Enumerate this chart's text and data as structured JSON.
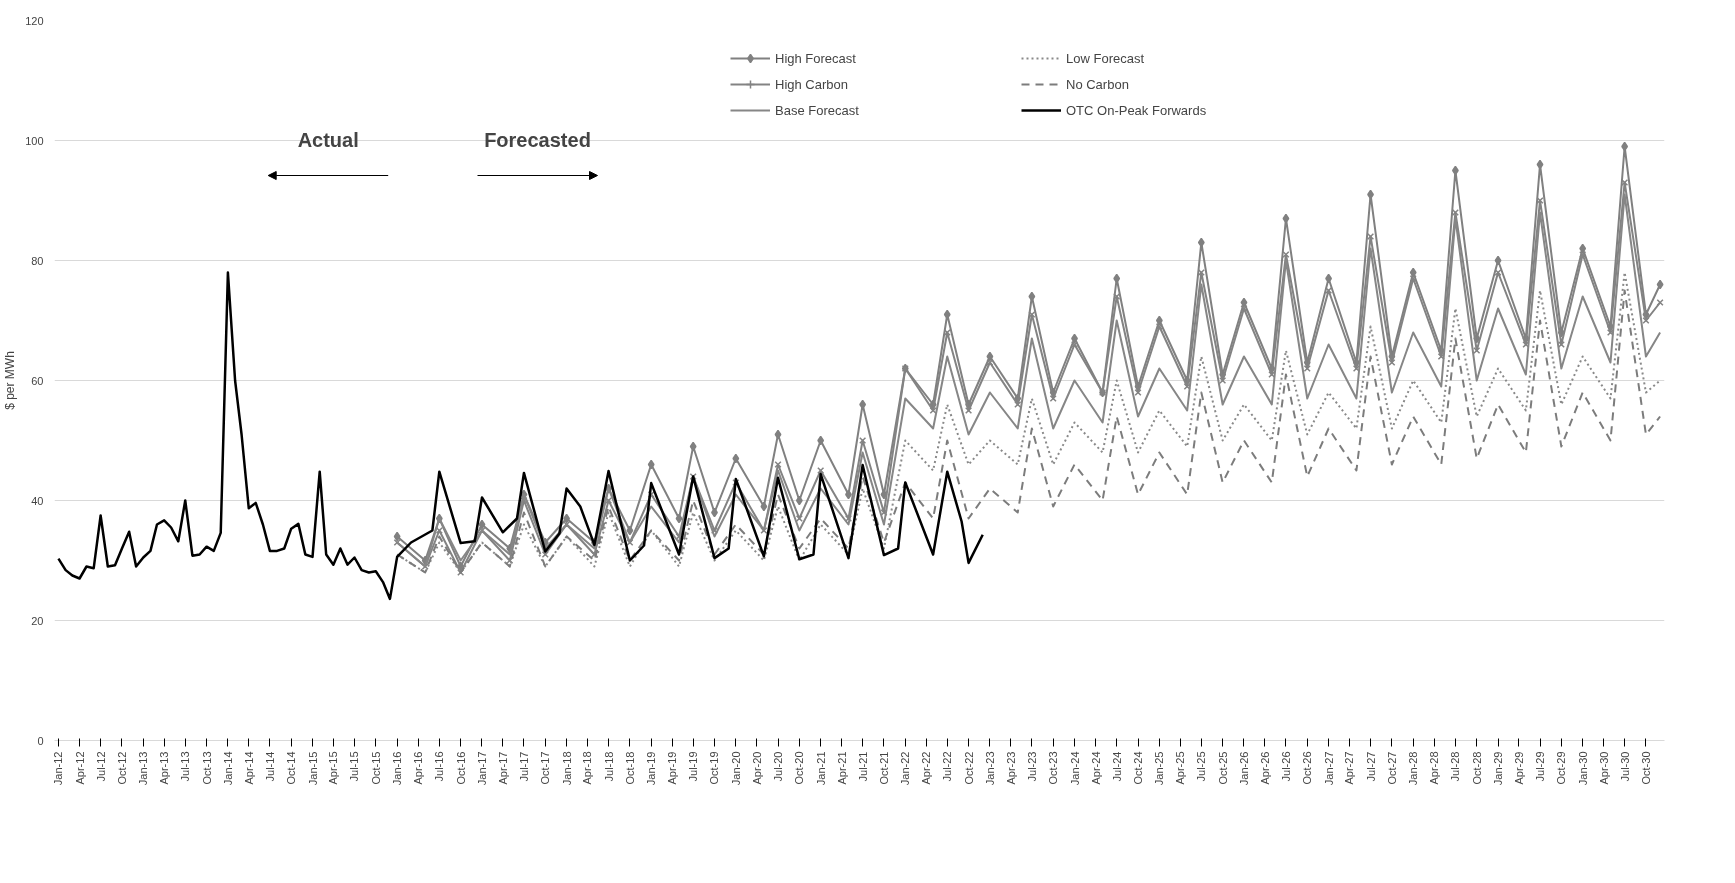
{
  "chart_data": {
    "type": "line",
    "ylabel": "$ per MWh",
    "annotations": [
      "Actual",
      "Forecasted"
    ],
    "xlim": [
      "2011-12-15",
      "2030-12-20"
    ],
    "ylim": [
      0,
      120
    ],
    "yticks": [
      0,
      20,
      40,
      60,
      80,
      100,
      120
    ],
    "grid": "y",
    "legend": "top right",
    "xticks": [
      {
        "value": "2012-01",
        "label": "Jan-12"
      },
      {
        "value": "2012-04",
        "label": "Apr-12"
      },
      {
        "value": "2012-07",
        "label": "Jul-12"
      },
      {
        "value": "2012-10",
        "label": "Oct-12"
      },
      {
        "value": "2013-01",
        "label": "Jan-13"
      },
      {
        "value": "2013-04",
        "label": "Apr-13"
      },
      {
        "value": "2013-07",
        "label": "Jul-13"
      },
      {
        "value": "2013-10",
        "label": "Oct-13"
      },
      {
        "value": "2014-01",
        "label": "Jan-14"
      },
      {
        "value": "2014-04",
        "label": "Apr-14"
      },
      {
        "value": "2014-07",
        "label": "Jul-14"
      },
      {
        "value": "2014-10",
        "label": "Oct-14"
      },
      {
        "value": "2015-01",
        "label": "Jan-15"
      },
      {
        "value": "2015-04",
        "label": "Apr-15"
      },
      {
        "value": "2015-07",
        "label": "Jul-15"
      },
      {
        "value": "2015-10",
        "label": "Oct-15"
      },
      {
        "value": "2016-01",
        "label": "Jan-16"
      },
      {
        "value": "2016-04",
        "label": "Apr-16"
      },
      {
        "value": "2016-07",
        "label": "Jul-16"
      },
      {
        "value": "2016-10",
        "label": "Oct-16"
      },
      {
        "value": "2017-01",
        "label": "Jan-17"
      },
      {
        "value": "2017-04",
        "label": "Apr-17"
      },
      {
        "value": "2017-07",
        "label": "Jul-17"
      },
      {
        "value": "2017-10",
        "label": "Oct-17"
      },
      {
        "value": "2018-01",
        "label": "Jan-18"
      },
      {
        "value": "2018-04",
        "label": "Apr-18"
      },
      {
        "value": "2018-07",
        "label": "Jul-18"
      },
      {
        "value": "2018-10",
        "label": "Oct-18"
      },
      {
        "value": "2019-01",
        "label": "Jan-19"
      },
      {
        "value": "2019-04",
        "label": "Apr-19"
      },
      {
        "value": "2019-07",
        "label": "Jul-19"
      },
      {
        "value": "2019-10",
        "label": "Oct-19"
      },
      {
        "value": "2020-01",
        "label": "Jan-20"
      },
      {
        "value": "2020-04",
        "label": "Apr-20"
      },
      {
        "value": "2020-07",
        "label": "Jul-20"
      },
      {
        "value": "2020-10",
        "label": "Oct-20"
      },
      {
        "value": "2021-01",
        "label": "Jan-21"
      },
      {
        "value": "2021-04",
        "label": "Apr-21"
      },
      {
        "value": "2021-07",
        "label": "Jul-21"
      },
      {
        "value": "2021-10",
        "label": "Oct-21"
      },
      {
        "value": "2022-01",
        "label": "Jan-22"
      },
      {
        "value": "2022-04",
        "label": "Apr-22"
      },
      {
        "value": "2022-07",
        "label": "Jul-22"
      },
      {
        "value": "2022-10",
        "label": "Oct-22"
      },
      {
        "value": "2023-01",
        "label": "Jan-23"
      },
      {
        "value": "2023-04",
        "label": "Apr-23"
      },
      {
        "value": "2023-07",
        "label": "Jul-23"
      },
      {
        "value": "2023-10",
        "label": "Oct-23"
      },
      {
        "value": "2024-01",
        "label": "Jan-24"
      },
      {
        "value": "2024-04",
        "label": "Apr-24"
      },
      {
        "value": "2024-07",
        "label": "Jul-24"
      },
      {
        "value": "2024-10",
        "label": "Oct-24"
      },
      {
        "value": "2025-01",
        "label": "Jan-25"
      },
      {
        "value": "2025-04",
        "label": "Apr-25"
      },
      {
        "value": "2025-07",
        "label": "Jul-25"
      },
      {
        "value": "2025-10",
        "label": "Oct-25"
      },
      {
        "value": "2026-01",
        "label": "Jan-26"
      },
      {
        "value": "2026-04",
        "label": "Apr-26"
      },
      {
        "value": "2026-07",
        "label": "Jul-26"
      },
      {
        "value": "2026-10",
        "label": "Oct-26"
      },
      {
        "value": "2027-01",
        "label": "Jan-27"
      },
      {
        "value": "2027-04",
        "label": "Apr-27"
      },
      {
        "value": "2027-07",
        "label": "Jul-27"
      },
      {
        "value": "2027-10",
        "label": "Oct-27"
      },
      {
        "value": "2028-01",
        "label": "Jan-28"
      },
      {
        "value": "2028-04",
        "label": "Apr-28"
      },
      {
        "value": "2028-07",
        "label": "Jul-28"
      },
      {
        "value": "2028-10",
        "label": "Oct-28"
      },
      {
        "value": "2029-01",
        "label": "Jan-29"
      },
      {
        "value": "2029-04",
        "label": "Apr-29"
      },
      {
        "value": "2029-07",
        "label": "Jul-29"
      },
      {
        "value": "2029-10",
        "label": "Oct-29"
      },
      {
        "value": "2030-01",
        "label": "Jan-30"
      },
      {
        "value": "2030-04",
        "label": "Apr-30"
      },
      {
        "value": "2030-07",
        "label": "Jul-30"
      },
      {
        "value": "2030-10",
        "label": "Oct-30"
      }
    ],
    "series": [
      {
        "name": "High Forecast",
        "color": "#808080",
        "line_style": "solid",
        "marker": "diamond",
        "x": [
          "2016-01",
          "2016-05",
          "2016-07",
          "2016-10",
          "2017-01",
          "2017-05",
          "2017-07",
          "2017-10",
          "2018-01",
          "2018-05",
          "2018-07",
          "2018-10",
          "2019-01",
          "2019-05",
          "2019-07",
          "2019-10",
          "2020-01",
          "2020-05",
          "2020-07",
          "2020-10",
          "2021-01",
          "2021-05",
          "2021-07",
          "2021-10",
          "2022-01",
          "2022-05",
          "2022-07",
          "2022-10",
          "2023-01",
          "2023-05",
          "2023-07",
          "2023-10",
          "2024-01",
          "2024-05",
          "2024-07",
          "2024-10",
          "2025-01",
          "2025-05",
          "2025-07",
          "2025-10",
          "2026-01",
          "2026-05",
          "2026-07",
          "2026-10",
          "2027-01",
          "2027-05",
          "2027-07",
          "2027-10",
          "2028-01",
          "2028-05",
          "2028-07",
          "2028-10",
          "2029-01",
          "2029-05",
          "2029-07",
          "2029-10",
          "2030-01",
          "2030-05",
          "2030-07",
          "2030-10",
          "2030-12"
        ],
        "values": [
          34,
          30,
          37,
          29,
          36,
          32,
          41,
          33,
          37,
          33,
          42,
          35,
          46,
          37,
          49,
          38,
          47,
          39,
          51,
          40,
          50,
          41,
          56,
          41,
          62,
          56,
          71,
          56,
          64,
          57,
          74,
          58,
          67,
          58,
          77,
          59,
          70,
          60,
          83,
          61,
          73,
          62,
          87,
          63,
          77,
          63,
          91,
          64,
          78,
          65,
          95,
          67,
          80,
          67,
          96,
          68,
          82,
          69,
          99,
          71,
          76
        ]
      },
      {
        "name": "High Carbon",
        "color": "#838383",
        "line_style": "solid",
        "marker": "cross",
        "x": [
          "2016-01",
          "2016-05",
          "2016-07",
          "2016-10",
          "2017-01",
          "2017-05",
          "2017-07",
          "2017-10",
          "2018-01",
          "2018-05",
          "2018-07",
          "2018-10",
          "2019-01",
          "2019-05",
          "2019-07",
          "2019-10",
          "2020-01",
          "2020-05",
          "2020-07",
          "2020-10",
          "2021-01",
          "2021-05",
          "2021-07",
          "2021-10",
          "2022-01",
          "2022-05",
          "2022-07",
          "2022-10",
          "2023-01",
          "2023-05",
          "2023-07",
          "2023-10",
          "2024-01",
          "2024-05",
          "2024-07",
          "2024-10",
          "2025-01",
          "2025-05",
          "2025-07",
          "2025-10",
          "2026-01",
          "2026-05",
          "2026-07",
          "2026-10",
          "2027-01",
          "2027-05",
          "2027-07",
          "2027-10",
          "2028-01",
          "2028-05",
          "2028-07",
          "2028-10",
          "2029-01",
          "2029-05",
          "2029-07",
          "2029-10",
          "2030-01",
          "2030-05",
          "2030-07",
          "2030-10",
          "2030-12"
        ],
        "values": [
          33,
          29,
          35,
          28,
          35,
          30,
          40,
          31,
          36,
          31,
          40,
          33,
          41,
          34,
          44,
          35,
          43,
          35,
          46,
          37,
          45,
          37,
          50,
          38,
          62,
          55,
          68,
          55,
          63,
          56,
          71,
          57,
          66,
          58,
          74,
          58,
          69,
          59,
          78,
          60,
          72,
          61,
          81,
          62,
          75,
          62,
          84,
          63,
          77,
          64,
          88,
          65,
          78,
          66,
          90,
          66,
          81,
          68,
          93,
          70,
          73
        ]
      },
      {
        "name": "Base Forecast",
        "color": "#868686",
        "line_style": "solid",
        "x": [
          "2016-01",
          "2016-05",
          "2016-07",
          "2016-10",
          "2017-01",
          "2017-05",
          "2017-07",
          "2017-10",
          "2018-01",
          "2018-05",
          "2018-07",
          "2018-10",
          "2019-01",
          "2019-05",
          "2019-07",
          "2019-10",
          "2020-01",
          "2020-05",
          "2020-07",
          "2020-10",
          "2021-01",
          "2021-05",
          "2021-07",
          "2021-10",
          "2022-01",
          "2022-05",
          "2022-07",
          "2022-10",
          "2023-01",
          "2023-05",
          "2023-07",
          "2023-10",
          "2024-01",
          "2024-05",
          "2024-07",
          "2024-10",
          "2025-01",
          "2025-05",
          "2025-07",
          "2025-10",
          "2026-01",
          "2026-05",
          "2026-07",
          "2026-10",
          "2027-01",
          "2027-05",
          "2027-07",
          "2027-10",
          "2028-01",
          "2028-05",
          "2028-07",
          "2028-10",
          "2029-01",
          "2029-05",
          "2029-07",
          "2029-10",
          "2030-01",
          "2030-05",
          "2030-07",
          "2030-10",
          "2030-12"
        ],
        "values": [
          33,
          29,
          37,
          30,
          35,
          31,
          41,
          32,
          36,
          32,
          42,
          33,
          39,
          33,
          44,
          34,
          41,
          35,
          45,
          35,
          42,
          36,
          48,
          36,
          57,
          52,
          64,
          51,
          58,
          52,
          67,
          52,
          60,
          53,
          70,
          54,
          62,
          55,
          76,
          56,
          64,
          56,
          80,
          57,
          66,
          57,
          82,
          58,
          68,
          59,
          87,
          60,
          72,
          61,
          88,
          62,
          74,
          63,
          91,
          64,
          68
        ]
      },
      {
        "name": "Low Forecast",
        "color": "#898989",
        "line_style": "dotted",
        "x": [
          "2016-01",
          "2016-05",
          "2016-07",
          "2016-10",
          "2017-01",
          "2017-05",
          "2017-07",
          "2017-10",
          "2018-01",
          "2018-05",
          "2018-07",
          "2018-10",
          "2019-01",
          "2019-05",
          "2019-07",
          "2019-10",
          "2020-01",
          "2020-05",
          "2020-07",
          "2020-10",
          "2021-01",
          "2021-05",
          "2021-07",
          "2021-10",
          "2022-01",
          "2022-05",
          "2022-07",
          "2022-10",
          "2023-01",
          "2023-05",
          "2023-07",
          "2023-10",
          "2024-01",
          "2024-05",
          "2024-07",
          "2024-10",
          "2025-01",
          "2025-05",
          "2025-07",
          "2025-10",
          "2026-01",
          "2026-05",
          "2026-07",
          "2026-10",
          "2027-01",
          "2027-05",
          "2027-07",
          "2027-10",
          "2028-01",
          "2028-05",
          "2028-07",
          "2028-10",
          "2029-01",
          "2029-05",
          "2029-07",
          "2029-10",
          "2030-01",
          "2030-05",
          "2030-07",
          "2030-10",
          "2030-12"
        ],
        "values": [
          31,
          28,
          33,
          28,
          33,
          29,
          36,
          29,
          34,
          29,
          38,
          29,
          35,
          29,
          38,
          30,
          35,
          30,
          39,
          30,
          36,
          31,
          42,
          32,
          50,
          45,
          56,
          46,
          50,
          46,
          57,
          46,
          53,
          48,
          60,
          48,
          55,
          49,
          64,
          50,
          56,
          50,
          65,
          51,
          58,
          52,
          69,
          52,
          60,
          53,
          72,
          54,
          62,
          55,
          75,
          56,
          64,
          57,
          78,
          58,
          60
        ]
      },
      {
        "name": "No Carbon",
        "color": "#7c7c7c",
        "line_style": "dashed",
        "x": [
          "2016-01",
          "2016-05",
          "2016-07",
          "2016-10",
          "2017-01",
          "2017-05",
          "2017-07",
          "2017-10",
          "2018-01",
          "2018-05",
          "2018-07",
          "2018-10",
          "2019-01",
          "2019-05",
          "2019-07",
          "2019-10",
          "2020-01",
          "2020-05",
          "2020-07",
          "2020-10",
          "2021-01",
          "2021-05",
          "2021-07",
          "2021-10",
          "2022-01",
          "2022-05",
          "2022-07",
          "2022-10",
          "2023-01",
          "2023-05",
          "2023-07",
          "2023-10",
          "2024-01",
          "2024-05",
          "2024-07",
          "2024-10",
          "2025-01",
          "2025-05",
          "2025-07",
          "2025-10",
          "2026-01",
          "2026-05",
          "2026-07",
          "2026-10",
          "2027-01",
          "2027-05",
          "2027-07",
          "2027-10",
          "2028-01",
          "2028-05",
          "2028-07",
          "2028-10",
          "2029-01",
          "2029-05",
          "2029-07",
          "2029-10",
          "2030-01",
          "2030-05",
          "2030-07",
          "2030-10",
          "2030-12"
        ],
        "values": [
          31,
          28,
          34,
          28,
          33,
          29,
          38,
          29,
          34,
          30,
          39,
          30,
          35,
          30,
          40,
          31,
          36,
          31,
          41,
          32,
          37,
          32,
          44,
          33,
          43,
          37,
          50,
          37,
          42,
          38,
          52,
          39,
          46,
          40,
          54,
          41,
          48,
          41,
          58,
          43,
          50,
          43,
          61,
          44,
          52,
          45,
          64,
          46,
          54,
          46,
          67,
          47,
          56,
          48,
          70,
          49,
          58,
          50,
          75,
          51,
          54
        ]
      },
      {
        "name": "OTC On-Peak Forwards",
        "color": "#000000",
        "line_style": "solid",
        "x": [
          "2012-01",
          "2012-02",
          "2012-03",
          "2012-04",
          "2012-05",
          "2012-06",
          "2012-07",
          "2012-08",
          "2012-09",
          "2012-10",
          "2012-11",
          "2012-12",
          "2013-01",
          "2013-02",
          "2013-03",
          "2013-04",
          "2013-05",
          "2013-06",
          "2013-07",
          "2013-08",
          "2013-09",
          "2013-10",
          "2013-11",
          "2013-12",
          "2014-01",
          "2014-02",
          "2014-03",
          "2014-04",
          "2014-05",
          "2014-06",
          "2014-07",
          "2014-08",
          "2014-09",
          "2014-10",
          "2014-11",
          "2014-12",
          "2015-01",
          "2015-02",
          "2015-03",
          "2015-04",
          "2015-05",
          "2015-06",
          "2015-07",
          "2015-08",
          "2015-09",
          "2015-10",
          "2015-11",
          "2015-12",
          "2016-01",
          "2016-03",
          "2016-06",
          "2016-07",
          "2016-10",
          "2016-12",
          "2017-01",
          "2017-04",
          "2017-06",
          "2017-07",
          "2017-10",
          "2017-12",
          "2018-01",
          "2018-03",
          "2018-05",
          "2018-07",
          "2018-10",
          "2018-12",
          "2019-01",
          "2019-05",
          "2019-07",
          "2019-10",
          "2019-12",
          "2020-01",
          "2020-05",
          "2020-07",
          "2020-10",
          "2020-12",
          "2021-01",
          "2021-05",
          "2021-07",
          "2021-10",
          "2021-12",
          "2022-01",
          "2022-05",
          "2022-07",
          "2022-09",
          "2022-10",
          "2022-12"
        ],
        "values": [
          30.3,
          28.4,
          27.5,
          27,
          29,
          28.7,
          37.5,
          29,
          29.2,
          32,
          34.8,
          29,
          30.5,
          31.6,
          36,
          36.7,
          35.5,
          33.2,
          40,
          30.8,
          31,
          32.3,
          31.6,
          34.6,
          78,
          60,
          51,
          38.7,
          39.6,
          36,
          31.6,
          31.6,
          32,
          35.3,
          36.1,
          31,
          30.6,
          44.8,
          31,
          29.3,
          32,
          29.3,
          30.5,
          28.4,
          28,
          28.2,
          26.4,
          23.6,
          30.6,
          33,
          35,
          44.8,
          32.9,
          33.2,
          40.5,
          34.7,
          37,
          44.6,
          31.5,
          34.5,
          42,
          39,
          32.6,
          44.9,
          30,
          32.5,
          42.9,
          31,
          44,
          30.4,
          32,
          43.6,
          30.7,
          43.8,
          30.2,
          31,
          44.4,
          30.4,
          45.9,
          30.9,
          32,
          43,
          31,
          44.8,
          36.5,
          29.6,
          34.3
        ]
      }
    ]
  }
}
